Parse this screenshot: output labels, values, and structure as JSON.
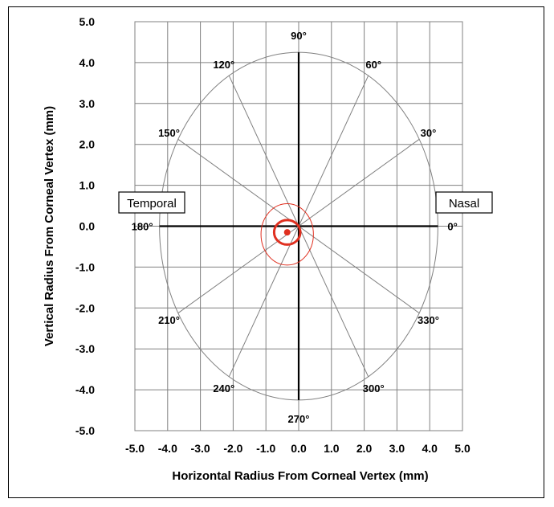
{
  "chart_data": {
    "type": "scatter",
    "xlabel": "Horizontal Radius From Corneal Vertex (mm)",
    "ylabel": "Vertical Radius From Corneal Vertex (mm)",
    "xlim": [
      -5.0,
      5.0
    ],
    "ylim": [
      -5.0,
      5.0
    ],
    "x_ticks": [
      "-5.0",
      "-4.0",
      "-3.0",
      "-2.0",
      "-1.0",
      "0.0",
      "1.0",
      "2.0",
      "3.0",
      "4.0",
      "5.0"
    ],
    "y_ticks": [
      "5.0",
      "4.0",
      "3.0",
      "2.0",
      "1.0",
      "0.0",
      "-1.0",
      "-2.0",
      "-3.0",
      "-4.0",
      "-5.0"
    ],
    "grid": true,
    "outer_circle_radius": 4.25,
    "meridians": [
      {
        "angle": 0,
        "label": "0°"
      },
      {
        "angle": 30,
        "label": "30°"
      },
      {
        "angle": 60,
        "label": "60°"
      },
      {
        "angle": 90,
        "label": "90°"
      },
      {
        "angle": 120,
        "label": "120°"
      },
      {
        "angle": 150,
        "label": "150°"
      },
      {
        "angle": 180,
        "label": "180°"
      },
      {
        "angle": 210,
        "label": "210°"
      },
      {
        "angle": 240,
        "label": "240°"
      },
      {
        "angle": 270,
        "label": "270°"
      },
      {
        "angle": 300,
        "label": "300°"
      },
      {
        "angle": 330,
        "label": "330°"
      }
    ],
    "side_labels": {
      "left": "Temporal",
      "right": "Nasal"
    },
    "centroid": {
      "x": -0.35,
      "y": -0.15
    },
    "inner_ellipse": {
      "cx": -0.35,
      "cy": -0.15,
      "rx": 0.4,
      "ry": 0.3
    },
    "outer_ellipse": {
      "cx": -0.35,
      "cy": -0.2,
      "rx": 0.8,
      "ry": 0.75
    },
    "colors": {
      "data": "#e03020",
      "grid": "#808080",
      "axis": "#000000"
    }
  }
}
